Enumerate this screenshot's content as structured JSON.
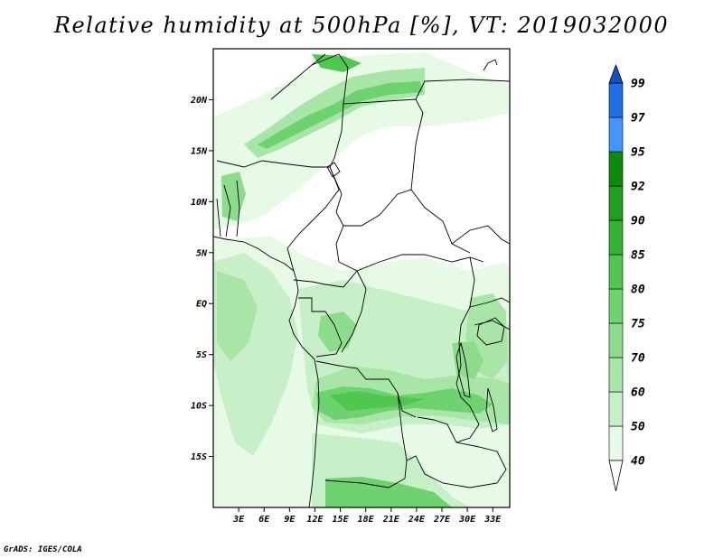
{
  "title": "Relative humidity at 500hPa [%], VT: 2019032000",
  "credit": "GrADS: IGES/COLA",
  "map": {
    "lon_range": [
      0,
      35
    ],
    "lat_range": [
      -20,
      25
    ],
    "lat_ticks": [
      {
        "value": 20,
        "label": "20N"
      },
      {
        "value": 15,
        "label": "15N"
      },
      {
        "value": 10,
        "label": "10N"
      },
      {
        "value": 5,
        "label": "5N"
      },
      {
        "value": 0,
        "label": "EQ"
      },
      {
        "value": -5,
        "label": "5S"
      },
      {
        "value": -10,
        "label": "10S"
      },
      {
        "value": -15,
        "label": "15S"
      }
    ],
    "lon_ticks": [
      {
        "value": 3,
        "label": "3E"
      },
      {
        "value": 6,
        "label": "6E"
      },
      {
        "value": 9,
        "label": "9E"
      },
      {
        "value": 12,
        "label": "12E"
      },
      {
        "value": 15,
        "label": "15E"
      },
      {
        "value": 18,
        "label": "18E"
      },
      {
        "value": 21,
        "label": "21E"
      },
      {
        "value": 24,
        "label": "24E"
      },
      {
        "value": 27,
        "label": "27E"
      },
      {
        "value": 30,
        "label": "30E"
      },
      {
        "value": 33,
        "label": "33E"
      }
    ]
  },
  "colorbar": {
    "levels": [
      {
        "label": "40",
        "color": "#ffffff"
      },
      {
        "label": "50",
        "color": "#e6fae6"
      },
      {
        "label": "60",
        "color": "#c8f0c8"
      },
      {
        "label": "70",
        "color": "#a8e6a8"
      },
      {
        "label": "75",
        "color": "#8cdc8c"
      },
      {
        "label": "80",
        "color": "#6ed26e"
      },
      {
        "label": "85",
        "color": "#50c850"
      },
      {
        "label": "90",
        "color": "#32b432"
      },
      {
        "label": "92",
        "color": "#1ea01e"
      },
      {
        "label": "95",
        "color": "#0a8c0a"
      },
      {
        "label": "97",
        "color": "#4196ff"
      },
      {
        "label": "99",
        "color": "#1e6ee6"
      }
    ],
    "top_arrow_color": "#1450c8",
    "bottom_arrow_color": "#ffffff"
  }
}
